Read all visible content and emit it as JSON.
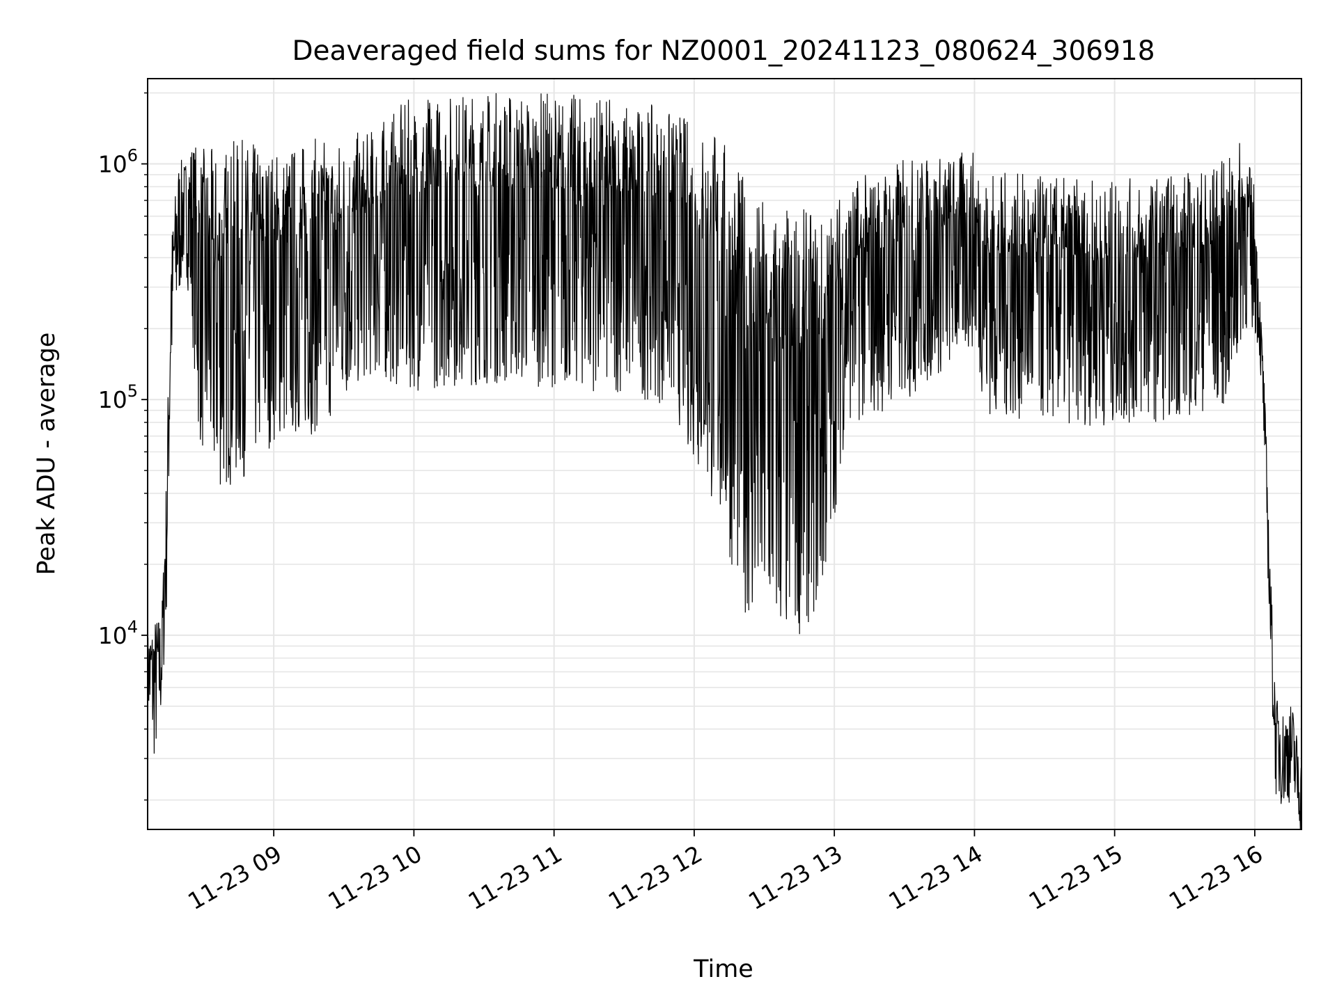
{
  "chart_data": {
    "type": "line",
    "title": "Deaveraged field sums for NZ0001_20241123_080624_306918",
    "xlabel": "Time",
    "ylabel": "Peak ADU - average",
    "yscale": "log",
    "grid": true,
    "grid_minor": true,
    "line_color": "#000000",
    "grid_color": "#e6e6e6",
    "xlim": [
      "2024-11-23 08:06",
      "2024-11-23 16:20"
    ],
    "ylim": [
      1500,
      2300000
    ],
    "x_ticks": [
      {
        "t": "2024-11-23 09:00",
        "label": "11-23 09"
      },
      {
        "t": "2024-11-23 10:00",
        "label": "11-23 10"
      },
      {
        "t": "2024-11-23 11:00",
        "label": "11-23 11"
      },
      {
        "t": "2024-11-23 12:00",
        "label": "11-23 12"
      },
      {
        "t": "2024-11-23 13:00",
        "label": "11-23 13"
      },
      {
        "t": "2024-11-23 14:00",
        "label": "11-23 14"
      },
      {
        "t": "2024-11-23 15:00",
        "label": "11-23 15"
      },
      {
        "t": "2024-11-23 16:00",
        "label": "11-23 16"
      }
    ],
    "y_ticks": [
      {
        "value": 10000,
        "base": "10",
        "exp": "4"
      },
      {
        "value": 100000,
        "base": "10",
        "exp": "5"
      },
      {
        "value": 1000000,
        "base": "10",
        "exp": "6"
      }
    ],
    "series": [
      {
        "x": [
          "2024-11-23 08:06",
          "2024-11-23 08:09",
          "2024-11-23 08:12",
          "2024-11-23 08:14",
          "2024-11-23 08:16",
          "2024-11-23 08:19",
          "2024-11-23 08:22",
          "2024-11-23 08:25",
          "2024-11-23 08:28",
          "2024-11-23 08:35",
          "2024-11-23 08:45",
          "2024-11-23 09:00",
          "2024-11-23 09:20",
          "2024-11-23 09:40",
          "2024-11-23 10:00",
          "2024-11-23 10:30",
          "2024-11-23 11:00",
          "2024-11-23 11:30",
          "2024-11-23 11:50",
          "2024-11-23 12:10",
          "2024-11-23 12:25",
          "2024-11-23 12:40",
          "2024-11-23 12:55",
          "2024-11-23 13:05",
          "2024-11-23 13:30",
          "2024-11-23 14:00",
          "2024-11-23 14:05",
          "2024-11-23 14:30",
          "2024-11-23 15:00",
          "2024-11-23 15:30",
          "2024-11-23 15:50",
          "2024-11-23 15:55",
          "2024-11-23 16:00",
          "2024-11-23 16:02",
          "2024-11-23 16:04",
          "2024-11-23 16:07",
          "2024-11-23 16:09",
          "2024-11-23 16:12",
          "2024-11-23 16:16",
          "2024-11-23 16:20"
        ],
        "y": [
          8000,
          7500,
          9000,
          30000,
          300000,
          650000,
          750000,
          700000,
          450000,
          380000,
          420000,
          450000,
          500000,
          620000,
          750000,
          800000,
          780000,
          720000,
          650000,
          400000,
          180000,
          160000,
          170000,
          380000,
          480000,
          600000,
          420000,
          400000,
          380000,
          420000,
          480000,
          700000,
          500000,
          250000,
          100000,
          12000,
          4000,
          3500,
          3800,
          2300
        ],
        "noise_amplitude": [
          0.15,
          0.3,
          0.2,
          0.3,
          0.3,
          0.3,
          0.2,
          0.4,
          0.6,
          0.7,
          0.7,
          0.6,
          0.6,
          0.5,
          0.6,
          0.6,
          0.6,
          0.6,
          0.6,
          0.8,
          0.9,
          0.9,
          0.8,
          0.5,
          0.5,
          0.4,
          0.5,
          0.5,
          0.5,
          0.5,
          0.5,
          0.4,
          0.3,
          0.15,
          0.15,
          0.2,
          0.2,
          0.2,
          0.2,
          0.15
        ],
        "noise_seed": 7
      }
    ]
  }
}
